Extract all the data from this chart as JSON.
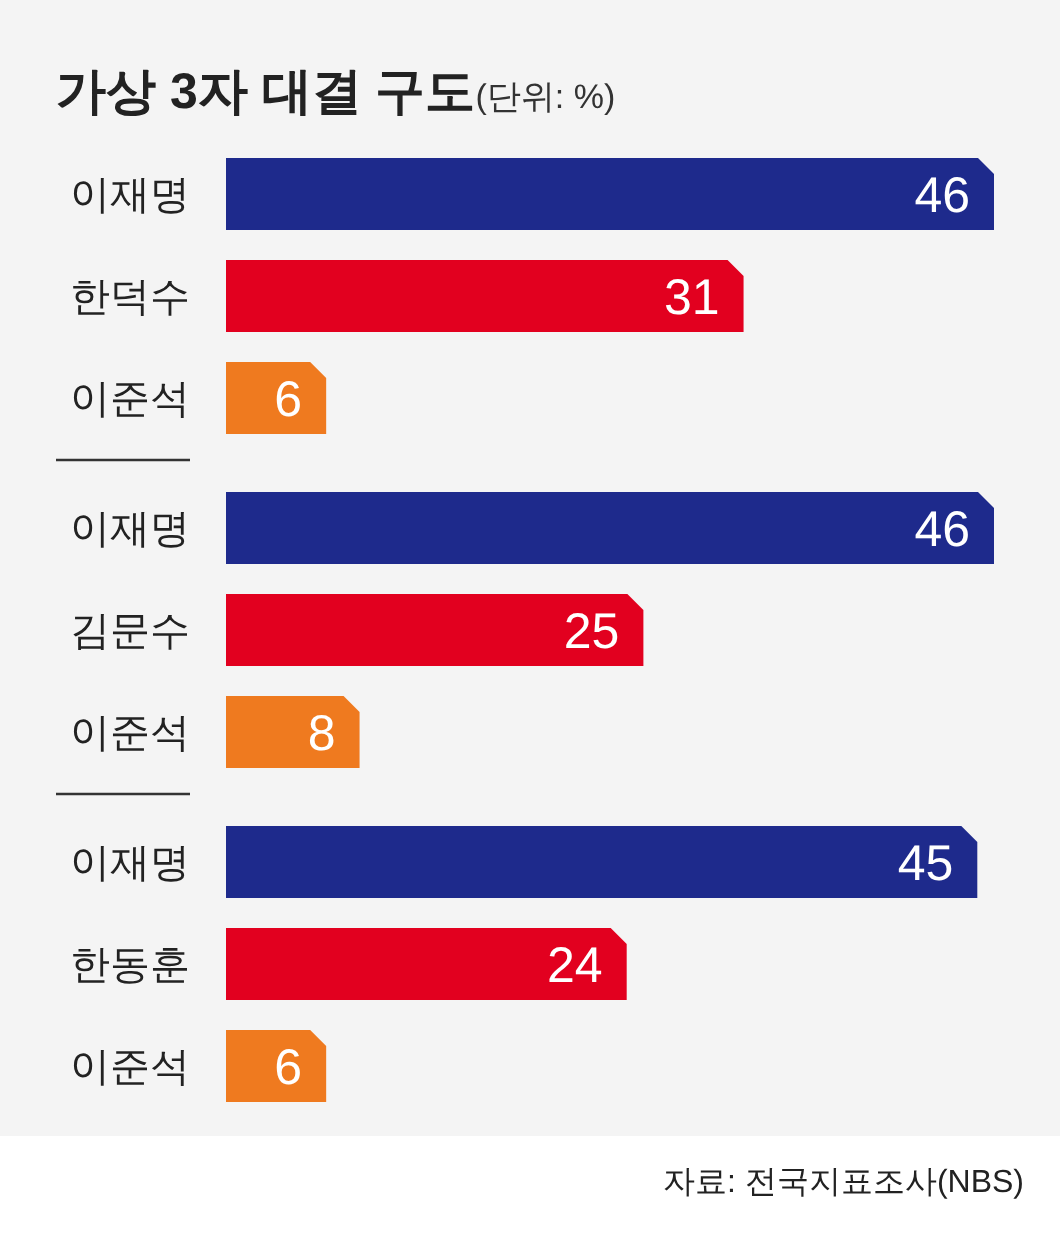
{
  "chart_data": [
    {
      "type": "bar",
      "orientation": "horizontal",
      "title": "가상 3자 대결 구도",
      "subtitle": "(단위: %)",
      "categories": [
        "이재명",
        "한덕수",
        "이준석"
      ],
      "values": [
        46,
        31,
        6
      ],
      "colors": [
        "#1e2a8c",
        "#e2001f",
        "#ef7a1f"
      ],
      "data_labels": true
    },
    {
      "type": "bar",
      "orientation": "horizontal",
      "categories": [
        "이재명",
        "김문수",
        "이준석"
      ],
      "values": [
        46,
        25,
        8
      ],
      "colors": [
        "#1e2a8c",
        "#e2001f",
        "#ef7a1f"
      ],
      "data_labels": true
    },
    {
      "type": "bar",
      "orientation": "horizontal",
      "categories": [
        "이재명",
        "한동훈",
        "이준석"
      ],
      "values": [
        45,
        24,
        6
      ],
      "colors": [
        "#1e2a8c",
        "#e2001f",
        "#ef7a1f"
      ],
      "data_labels": true,
      "annotations": [
        "자료: 전국지표조사(NBS)"
      ]
    }
  ]
}
